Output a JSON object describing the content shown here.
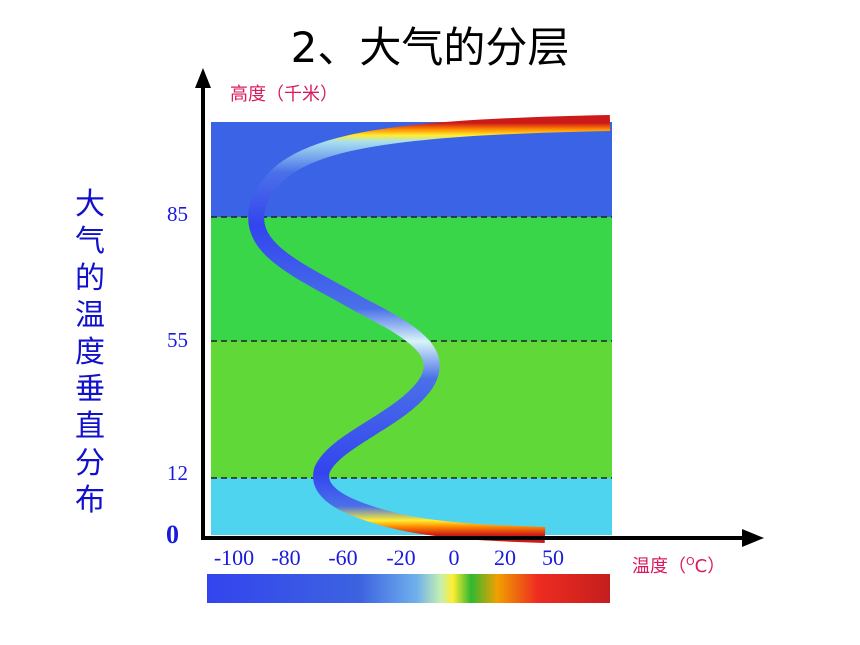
{
  "title": "2、大气的分层",
  "side_label": "大气的温度垂直分布",
  "y_axis_label": "高度（千米）",
  "x_axis_label": "温度（",
  "x_axis_unit_sup": "O",
  "x_axis_unit": "C）",
  "origin_label": "0",
  "chart_data": {
    "type": "diagram",
    "y_ticks": [
      "85",
      "55",
      "12"
    ],
    "x_ticks": [
      "-100",
      "-80",
      "-60",
      "-20",
      "0",
      "20",
      "50"
    ],
    "layer_boundaries_km": [
      12,
      55,
      85
    ],
    "layers": [
      {
        "color": "#4fd4f0"
      },
      {
        "color": "#60d838"
      },
      {
        "color": "#3ad64a"
      },
      {
        "color": "#3b63e6"
      }
    ],
    "color_scale": [
      "#3344ee",
      "#3d63e0",
      "#5fa0e8",
      "#9ed8f0",
      "#c4f0a0",
      "#ffee30",
      "#40c040",
      "#ffaa00",
      "#ee2020",
      "#cc2020"
    ]
  }
}
